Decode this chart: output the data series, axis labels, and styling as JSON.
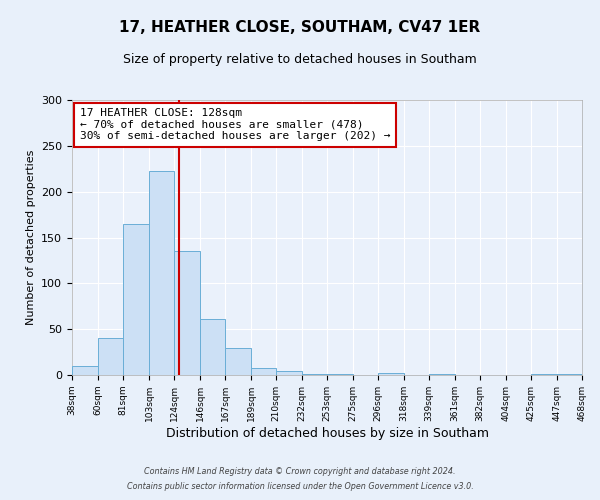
{
  "title": "17, HEATHER CLOSE, SOUTHAM, CV47 1ER",
  "subtitle": "Size of property relative to detached houses in Southam",
  "xlabel": "Distribution of detached houses by size in Southam",
  "ylabel": "Number of detached properties",
  "bin_edges": [
    38,
    60,
    81,
    103,
    124,
    146,
    167,
    189,
    210,
    232,
    253,
    275,
    296,
    318,
    339,
    361,
    382,
    404,
    425,
    447,
    468
  ],
  "bin_counts": [
    10,
    40,
    165,
    222,
    135,
    61,
    29,
    8,
    4,
    1,
    1,
    0,
    2,
    0,
    1,
    0,
    0,
    0,
    1,
    1
  ],
  "bar_face_color": "#cce0f5",
  "bar_edge_color": "#6aaed6",
  "vline_x": 128,
  "vline_color": "#cc0000",
  "annotation_line1": "17 HEATHER CLOSE: 128sqm",
  "annotation_line2": "← 70% of detached houses are smaller (478)",
  "annotation_line3": "30% of semi-detached houses are larger (202) →",
  "annotation_box_color": "#cc0000",
  "ylim": [
    0,
    300
  ],
  "yticks": [
    0,
    50,
    100,
    150,
    200,
    250,
    300
  ],
  "tick_labels": [
    "38sqm",
    "60sqm",
    "81sqm",
    "103sqm",
    "124sqm",
    "146sqm",
    "167sqm",
    "189sqm",
    "210sqm",
    "232sqm",
    "253sqm",
    "275sqm",
    "296sqm",
    "318sqm",
    "339sqm",
    "361sqm",
    "382sqm",
    "404sqm",
    "425sqm",
    "447sqm",
    "468sqm"
  ],
  "footer_line1": "Contains HM Land Registry data © Crown copyright and database right 2024.",
  "footer_line2": "Contains public sector information licensed under the Open Government Licence v3.0.",
  "background_color": "#e8f0fa",
  "plot_bg_color": "#eaf1fb",
  "title_fontsize": 11,
  "subtitle_fontsize": 9,
  "ylabel_fontsize": 8,
  "xlabel_fontsize": 9
}
